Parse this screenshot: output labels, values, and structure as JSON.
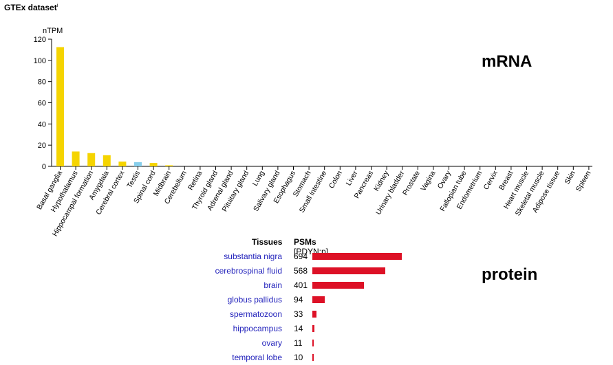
{
  "header": {
    "title": "GTEx dataset",
    "info_mark": "i"
  },
  "labels": {
    "mrna": "mRNA",
    "protein": "protein"
  },
  "colors": {
    "brain": "#f5d400",
    "testis": "#87ceeb",
    "protein_bar": "#dd1126",
    "link": "#2222bb"
  },
  "chart_data": [
    {
      "type": "bar",
      "title": "",
      "ylabel": "nTPM",
      "ylim": [
        0,
        120
      ],
      "yticks": [
        0,
        20,
        40,
        60,
        80,
        100,
        120
      ],
      "categories": [
        "Basal ganglia",
        "Hypothalamus",
        "Hippocampal formation",
        "Amygdala",
        "Cerebral cortex",
        "Testis",
        "Spinal cord",
        "Midbrain",
        "Cerebellum",
        "Retina",
        "Thyroid gland",
        "Adrenal gland",
        "Pituitary gland",
        "Lung",
        "Salivary gland",
        "Esophagus",
        "Stomach",
        "Small intestine",
        "Colon",
        "Liver",
        "Pancreas",
        "Kidney",
        "Urinary bladder",
        "Prostate",
        "Vagina",
        "Ovary",
        "Fallopian tube",
        "Endometrium",
        "Cervix",
        "Breast",
        "Heart muscle",
        "Skeletal muscle",
        "Adipose tissue",
        "Skin",
        "Spleen"
      ],
      "values": [
        112.5,
        14,
        12.5,
        10.5,
        4.5,
        4,
        3.2,
        1,
        0,
        0,
        0,
        0,
        0,
        0,
        0,
        0,
        0,
        0,
        0,
        0,
        0,
        0,
        0,
        0,
        0,
        0,
        0,
        0,
        0,
        0,
        0,
        0,
        0,
        0,
        0
      ],
      "bar_colors": [
        "#f5d400",
        "#f5d400",
        "#f5d400",
        "#f5d400",
        "#f5d400",
        "#87ceeb",
        "#f5d400",
        "#f5d400",
        "#f5d400",
        "#f5d400",
        "#f5d400",
        "#f5d400",
        "#f5d400",
        "#f5d400",
        "#f5d400",
        "#f5d400",
        "#f5d400",
        "#f5d400",
        "#f5d400",
        "#f5d400",
        "#f5d400",
        "#f5d400",
        "#f5d400",
        "#f5d400",
        "#f5d400",
        "#f5d400",
        "#f5d400",
        "#f5d400",
        "#f5d400",
        "#f5d400",
        "#f5d400",
        "#f5d400",
        "#f5d400",
        "#f5d400",
        "#f5d400"
      ]
    },
    {
      "type": "bar",
      "orientation": "horizontal",
      "column_headers": {
        "tissues": "Tissues",
        "psms": "PSMs",
        "psms_sub": "[PDYN:p]"
      },
      "categories": [
        "substantia nigra",
        "cerebrospinal fluid",
        "brain",
        "globus pallidus",
        "spermatozoon",
        "hippocampus",
        "ovary",
        "temporal lobe"
      ],
      "values": [
        694,
        568,
        401,
        94,
        33,
        14,
        11,
        10
      ]
    }
  ]
}
